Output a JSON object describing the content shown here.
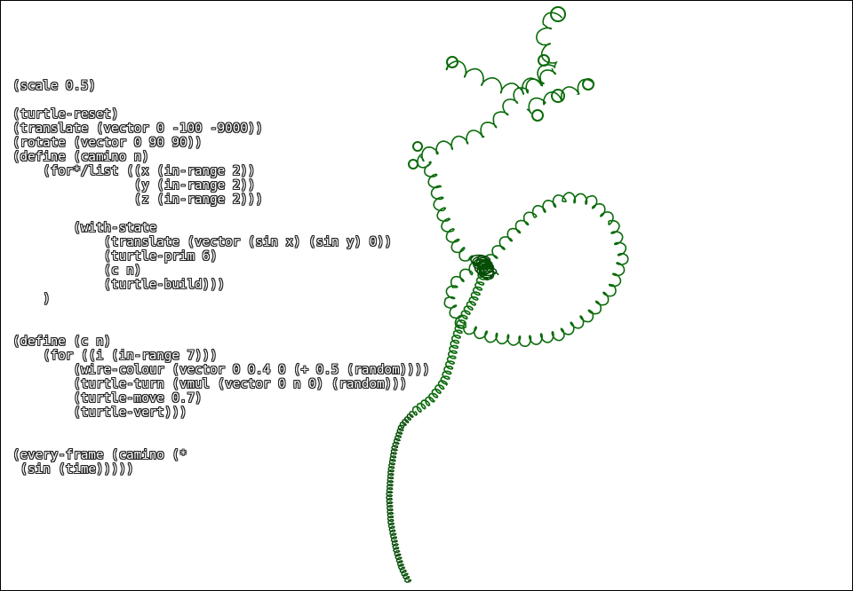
{
  "window": {
    "background": "#ffffff",
    "border": "#000000"
  },
  "editor": {
    "lines": [
      "(scale 0.5)",
      "",
      "(turtle-reset)",
      "(translate (vector 0 -100 -9000))",
      "(rotate (vector 0 90 90))",
      "(define (camino n)",
      "    (for*/list ((x (in-range 2))",
      "                (y (in-range 2))",
      "                (z (in-range 2)))",
      "",
      "        (with-state",
      "            (translate (vector (sin x) (sin y) 0))",
      "            (turtle-prim 6)",
      "            (c n)",
      "            (turtle-build)))",
      "    )",
      "",
      "",
      "(define (c n)",
      "    (for ((i (in-range 7)))",
      "        (wire-colour (vector 0 0.4 0 (+ 0.5 (random))))",
      "        (turtle-turn (vmul (vector 0 n 0) (random)))",
      "        (turtle-move 0.7)",
      "        (turtle-vert)))",
      "",
      "",
      "(every-frame (camino (*",
      " (sin (time)))))"
    ]
  },
  "render": {
    "wire_colour": "#0a6b0a",
    "wire_colour_dark": "#064d06"
  }
}
